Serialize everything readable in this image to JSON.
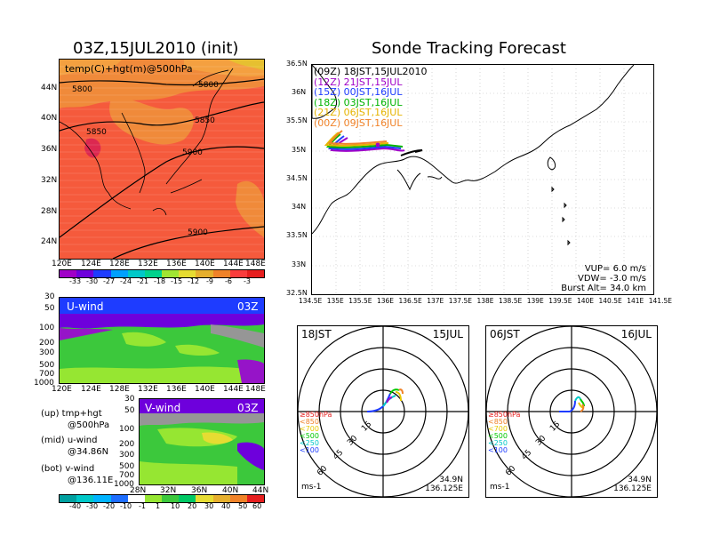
{
  "left_title": "03Z,15JUL2010 (init)",
  "right_title": "Sonde Tracking Forecast",
  "top_panel": {
    "label": "temp(C)+hgt(m)@500hPa",
    "contours": [
      "5800",
      "5800",
      "5850",
      "5850",
      "5900",
      "5900"
    ],
    "lat_ticks": [
      "44N",
      "40N",
      "36N",
      "32N",
      "28N",
      "24N"
    ],
    "lon_ticks": [
      "120E",
      "124E",
      "128E",
      "132E",
      "136E",
      "140E",
      "144E",
      "148E"
    ],
    "colorbar_ticks": [
      "-33",
      "-30",
      "-27",
      "-24",
      "-21",
      "-18",
      "-15",
      "-12",
      "-9",
      "-6",
      "-3"
    ],
    "colorbar_colors": [
      "#a000c8",
      "#6e00dc",
      "#1e3cff",
      "#00a0ff",
      "#00c8c8",
      "#00d28c",
      "#a0e632",
      "#e6dc32",
      "#e6af2d",
      "#f08228",
      "#fa3c3c"
    ]
  },
  "uwind_panel": {
    "label": "U-wind",
    "time": "03Z",
    "p_ticks": [
      "30",
      "50",
      "100",
      "200",
      "300",
      "500",
      "700",
      "1000"
    ],
    "lon_ticks": [
      "120E",
      "124E",
      "128E",
      "132E",
      "136E",
      "140E",
      "144E",
      "148E"
    ]
  },
  "vwind_panel": {
    "label": "V-wind",
    "time": "03Z",
    "p_ticks": [
      "30",
      "50",
      "100",
      "200",
      "300",
      "500",
      "700",
      "1000"
    ],
    "lat_ticks": [
      "28N",
      "32N",
      "36N",
      "40N",
      "44N"
    ]
  },
  "legend_notes": {
    "up1": "(up) tmp+hgt",
    "up2": "@500hPa",
    "mid1": "(mid) u-wind",
    "mid2": "@34.86N",
    "bot1": "(bot) v-wind",
    "bot2": "@136.11E"
  },
  "wind_colorbar": {
    "ticks": [
      "-40",
      "-30",
      "-20",
      "-10",
      "-1",
      "1",
      "10",
      "20",
      "30",
      "40",
      "50",
      "60"
    ],
    "colors": [
      "#00a0a0",
      "#00c8c8",
      "#00b4ff",
      "#1e6eff",
      "#ffffff",
      "#96e632",
      "#3cc83c",
      "#00c864",
      "#e6dc32",
      "#e6af2d",
      "#f08228",
      "#e61e1e"
    ]
  },
  "track_map": {
    "lat_ticks": [
      "36.5N",
      "36N",
      "35.5N",
      "35N",
      "34.5N",
      "34N",
      "33.5N",
      "33N",
      "32.5N"
    ],
    "lon_ticks": [
      "134.5E",
      "135E",
      "135.5E",
      "136E",
      "136.5E",
      "137E",
      "137.5E",
      "138E",
      "138.5E",
      "139E",
      "139.5E",
      "140E",
      "140.5E",
      "141E",
      "141.5E"
    ],
    "legend": [
      {
        "code": "(09Z)",
        "text": "18JST,15JUL2010",
        "color": "#000000"
      },
      {
        "code": "(12Z)",
        "text": "21JST,15JUL",
        "color": "#a000c8"
      },
      {
        "code": "(15Z)",
        "text": "00JST,16JUL",
        "color": "#1e3cff"
      },
      {
        "code": "(18Z)",
        "text": "03JST,16JUL",
        "color": "#00b400"
      },
      {
        "code": "(21Z)",
        "text": "06JST,16JUL",
        "color": "#e6b400"
      },
      {
        "code": "(00Z)",
        "text": "09JST,16JUL",
        "color": "#f08228"
      }
    ],
    "params": {
      "vup": "VUP= 6.0 m/s",
      "vdw": "VDW= -3.0 m/s",
      "burst": "Burst Alt= 34.0 km"
    }
  },
  "hodo_left": {
    "time": "18JST",
    "date": "15JUL",
    "rings": [
      "15",
      "30",
      "45",
      "60"
    ],
    "unit": "ms-1",
    "lat": "34.9N",
    "lon": "136.125E",
    "levels": [
      {
        "text": "≥850hPa",
        "color": "#e61e1e"
      },
      {
        "text": "<850",
        "color": "#f08228"
      },
      {
        "text": "<700",
        "color": "#e6c800"
      },
      {
        "text": "<500",
        "color": "#00c800"
      },
      {
        "text": "<250",
        "color": "#00c8c8"
      },
      {
        "text": "<100",
        "color": "#1e3cff"
      }
    ]
  },
  "hodo_right": {
    "time": "06JST",
    "date": "16JUL",
    "rings": [
      "15",
      "30",
      "45",
      "60"
    ],
    "unit": "ms-1",
    "lat": "34.9N",
    "lon": "136.125E",
    "levels": [
      {
        "text": "≥850hPa",
        "color": "#e61e1e"
      },
      {
        "text": "<850",
        "color": "#f08228"
      },
      {
        "text": "<700",
        "color": "#e6c800"
      },
      {
        "text": "<500",
        "color": "#00c800"
      },
      {
        "text": "<250",
        "color": "#00c8c8"
      },
      {
        "text": "<100",
        "color": "#1e3cff"
      }
    ]
  }
}
